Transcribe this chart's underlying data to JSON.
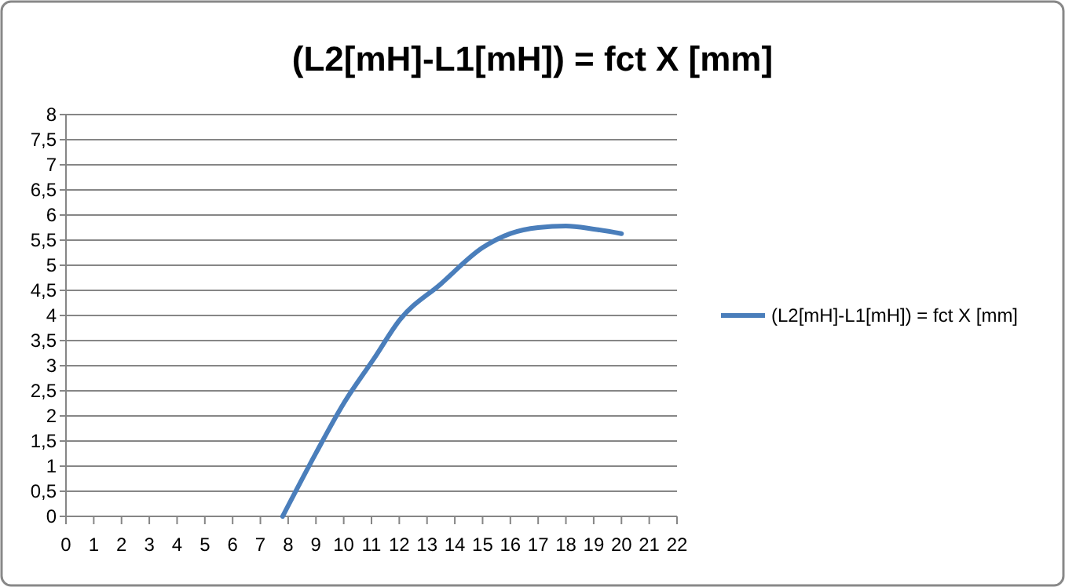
{
  "chart_data": {
    "type": "line",
    "title": "(L2[mH]-L1[mH]) = fct X [mm]",
    "series": [
      {
        "name": "(L2[mH]-L1[mH]) = fct X [mm]",
        "color": "#4a7ebb",
        "x": [
          7.8,
          9,
          10,
          11.1,
          12,
          13.5,
          15,
          16,
          17,
          18,
          19,
          20
        ],
        "values": [
          0,
          1.26,
          2.25,
          3.15,
          3.9,
          4.63,
          5.35,
          5.63,
          5.75,
          5.78,
          5.72,
          5.63
        ]
      }
    ],
    "xlim": [
      0,
      22
    ],
    "xticks": [
      0,
      1,
      2,
      3,
      4,
      5,
      6,
      7,
      8,
      9,
      10,
      11,
      12,
      13,
      14,
      15,
      16,
      17,
      18,
      19,
      20,
      21,
      22
    ],
    "ylim": [
      0,
      8
    ],
    "yticks": [
      0,
      {
        "value": 0.5,
        "label": "0,5"
      },
      1,
      {
        "value": 1.5,
        "label": "1,5"
      },
      2,
      {
        "value": 2.5,
        "label": "2,5"
      },
      3,
      {
        "value": 3.5,
        "label": "3,5"
      },
      4,
      {
        "value": 4.5,
        "label": "4,5"
      },
      5,
      {
        "value": 5.5,
        "label": "5,5"
      },
      6,
      {
        "value": 6.5,
        "label": "6,5"
      },
      7,
      {
        "value": 7.5,
        "label": "7,5"
      },
      8
    ],
    "grid": "y",
    "legend": "right",
    "marker": "none",
    "line_style": "solid"
  }
}
